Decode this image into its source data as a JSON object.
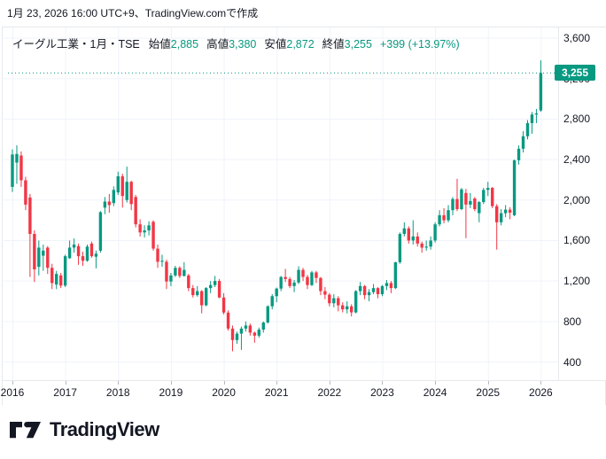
{
  "header": {
    "date_line": "1月 23, 2026 16:00 UTC+9、TradingView.comで作成"
  },
  "legend": {
    "symbol_title": "イーグル工業・1月・TSE",
    "ohlc": [
      {
        "label": "始値",
        "value": "2,885"
      },
      {
        "label": "高値",
        "value": "3,380"
      },
      {
        "label": "安値",
        "value": "2,872"
      },
      {
        "label": "終値",
        "value": "3,255"
      }
    ],
    "change": "+399 (+13.97%)"
  },
  "colors": {
    "up": "#089981",
    "down": "#F23645",
    "text": "#131722",
    "grid": "#F0F3FA",
    "axis_border": "#E6E8EC",
    "price_tag_bg": "#089981",
    "price_tag_text": "#FFFFFF",
    "logo": "#131722"
  },
  "price_axis": {
    "ticks": [
      "3,600",
      "3,200",
      "2,800",
      "2,400",
      "2,000",
      "1,600",
      "1,200",
      "800",
      "400"
    ],
    "tick_values": [
      3600,
      3200,
      2800,
      2400,
      2000,
      1600,
      1200,
      800,
      400
    ],
    "current_price_label": "3,255",
    "current_price_value": 3255
  },
  "time_axis": {
    "ticks": [
      "2016",
      "2017",
      "2018",
      "2019",
      "2020",
      "2021",
      "2022",
      "2023",
      "2024",
      "2025",
      "2026"
    ]
  },
  "footer": {
    "logo_text": "TradingView"
  },
  "chart_data": {
    "type": "candlestick",
    "title": "イーグル工業・1月・TSE",
    "symbol": "イーグル工業",
    "interval": "1月",
    "exchange": "TSE",
    "x_unit": "month",
    "start": "2016-01",
    "end": "2026-01",
    "ylim": [
      250,
      3700
    ],
    "grid": true,
    "last": {
      "open": 2885,
      "high": 3380,
      "low": 2872,
      "close": 3255,
      "change_abs": 399,
      "change_pct": 13.97
    },
    "candles_format": [
      "open",
      "high",
      "low",
      "close"
    ],
    "candles": [
      [
        2130,
        2500,
        2080,
        2450
      ],
      [
        2370,
        2540,
        2160,
        2455
      ],
      [
        2440,
        2480,
        2130,
        2195
      ],
      [
        2195,
        2230,
        1900,
        1955
      ],
      [
        2025,
        2060,
        1240,
        1665
      ],
      [
        1665,
        1700,
        1190,
        1315
      ],
      [
        1340,
        1600,
        1255,
        1530
      ],
      [
        1450,
        1560,
        1300,
        1500
      ],
      [
        1530,
        1545,
        1270,
        1330
      ],
      [
        1330,
        1370,
        1120,
        1180
      ],
      [
        1165,
        1300,
        1120,
        1270
      ],
      [
        1255,
        1280,
        1130,
        1155
      ],
      [
        1155,
        1460,
        1140,
        1445
      ],
      [
        1425,
        1600,
        1420,
        1530
      ],
      [
        1530,
        1620,
        1480,
        1560
      ],
      [
        1545,
        1570,
        1360,
        1445
      ],
      [
        1445,
        1490,
        1350,
        1400
      ],
      [
        1400,
        1560,
        1390,
        1540
      ],
      [
        1570,
        1590,
        1430,
        1445
      ],
      [
        1440,
        1500,
        1325,
        1470
      ],
      [
        1500,
        1890,
        1480,
        1880
      ],
      [
        1925,
        2030,
        1860,
        1985
      ],
      [
        1985,
        2060,
        1875,
        1950
      ],
      [
        1970,
        2135,
        1940,
        2100
      ],
      [
        2075,
        2280,
        2050,
        2235
      ],
      [
        2235,
        2260,
        1925,
        2040
      ],
      [
        2000,
        2330,
        1975,
        2180
      ],
      [
        2180,
        2190,
        1900,
        1960
      ],
      [
        2030,
        2050,
        1730,
        1760
      ],
      [
        1760,
        1810,
        1640,
        1680
      ],
      [
        1680,
        1750,
        1630,
        1700
      ],
      [
        1700,
        1790,
        1650,
        1750
      ],
      [
        1785,
        1800,
        1500,
        1520
      ],
      [
        1520,
        1560,
        1330,
        1390
      ],
      [
        1390,
        1460,
        1340,
        1400
      ],
      [
        1390,
        1410,
        1120,
        1195
      ],
      [
        1195,
        1280,
        1150,
        1255
      ],
      [
        1255,
        1350,
        1240,
        1330
      ],
      [
        1330,
        1345,
        1230,
        1250
      ],
      [
        1250,
        1386,
        1245,
        1310
      ],
      [
        1255,
        1270,
        1100,
        1130
      ],
      [
        1130,
        1160,
        1037,
        1060
      ],
      [
        1060,
        1150,
        1045,
        1100
      ],
      [
        1100,
        1110,
        880,
        960
      ],
      [
        960,
        1140,
        950,
        1130
      ],
      [
        1130,
        1200,
        1080,
        1160
      ],
      [
        1160,
        1250,
        1140,
        1200
      ],
      [
        1200,
        1220,
        1030,
        1037
      ],
      [
        1037,
        1080,
        870,
        888
      ],
      [
        888,
        910,
        710,
        730
      ],
      [
        730,
        760,
        506,
        616
      ],
      [
        616,
        700,
        580,
        680
      ],
      [
        680,
        750,
        520,
        730
      ],
      [
        730,
        800,
        700,
        760
      ],
      [
        760,
        780,
        660,
        690
      ],
      [
        690,
        700,
        590,
        660
      ],
      [
        660,
        740,
        640,
        720
      ],
      [
        720,
        800,
        690,
        790
      ],
      [
        790,
        960,
        780,
        950
      ],
      [
        950,
        1070,
        920,
        1050
      ],
      [
        1050,
        1135,
        990,
        1125
      ],
      [
        1125,
        1250,
        1100,
        1240
      ],
      [
        1240,
        1320,
        1190,
        1220
      ],
      [
        1220,
        1240,
        1130,
        1150
      ],
      [
        1150,
        1210,
        1090,
        1185
      ],
      [
        1185,
        1345,
        1170,
        1310
      ],
      [
        1310,
        1330,
        1200,
        1240
      ],
      [
        1240,
        1260,
        1120,
        1160
      ],
      [
        1160,
        1300,
        1150,
        1285
      ],
      [
        1285,
        1300,
        1180,
        1230
      ],
      [
        1230,
        1240,
        1060,
        1100
      ],
      [
        1100,
        1140,
        1020,
        1065
      ],
      [
        1065,
        1080,
        950,
        980
      ],
      [
        980,
        1070,
        940,
        1030
      ],
      [
        1030,
        1050,
        900,
        960
      ],
      [
        960,
        990,
        890,
        920
      ],
      [
        920,
        1000,
        880,
        950
      ],
      [
        950,
        970,
        850,
        890
      ],
      [
        890,
        1110,
        880,
        1100
      ],
      [
        1100,
        1190,
        1060,
        1150
      ],
      [
        1150,
        1160,
        1020,
        1060
      ],
      [
        1060,
        1120,
        1000,
        1090
      ],
      [
        1090,
        1170,
        1070,
        1130
      ],
      [
        1130,
        1140,
        1030,
        1070
      ],
      [
        1070,
        1160,
        1050,
        1150
      ],
      [
        1150,
        1210,
        1110,
        1180
      ],
      [
        1180,
        1200,
        1080,
        1130
      ],
      [
        1130,
        1390,
        1120,
        1385
      ],
      [
        1385,
        1680,
        1370,
        1665
      ],
      [
        1665,
        1780,
        1640,
        1720
      ],
      [
        1720,
        1740,
        1570,
        1600
      ],
      [
        1600,
        1800,
        1560,
        1640
      ],
      [
        1640,
        1680,
        1540,
        1570
      ],
      [
        1570,
        1590,
        1480,
        1530
      ],
      [
        1530,
        1600,
        1500,
        1540
      ],
      [
        1540,
        1640,
        1510,
        1600
      ],
      [
        1600,
        1780,
        1580,
        1760
      ],
      [
        1760,
        1900,
        1740,
        1850
      ],
      [
        1850,
        1920,
        1770,
        1800
      ],
      [
        1800,
        1950,
        1780,
        1900
      ],
      [
        1900,
        2030,
        1850,
        2010
      ],
      [
        2010,
        2210,
        1890,
        1910
      ],
      [
        1910,
        2120,
        1900,
        2105
      ],
      [
        2070,
        2110,
        1623,
        1955
      ],
      [
        1955,
        2070,
        1920,
        1990
      ],
      [
        2015,
        2030,
        1890,
        1910
      ],
      [
        1870,
        1990,
        1780,
        1980
      ],
      [
        1980,
        2120,
        1960,
        2100
      ],
      [
        2100,
        2180,
        2040,
        2120
      ],
      [
        2120,
        2130,
        1920,
        1940
      ],
      [
        1940,
        1960,
        1510,
        1780
      ],
      [
        1780,
        1910,
        1750,
        1870
      ],
      [
        1870,
        1950,
        1830,
        1905
      ],
      [
        1905,
        1930,
        1810,
        1875
      ],
      [
        1850,
        2400,
        1840,
        2393
      ],
      [
        2393,
        2540,
        2350,
        2507
      ],
      [
        2507,
        2680,
        2470,
        2630
      ],
      [
        2630,
        2790,
        2600,
        2760
      ],
      [
        2760,
        2870,
        2655,
        2845
      ],
      [
        2845,
        2900,
        2760,
        2856
      ],
      [
        2885,
        3380,
        2872,
        3255
      ]
    ]
  }
}
